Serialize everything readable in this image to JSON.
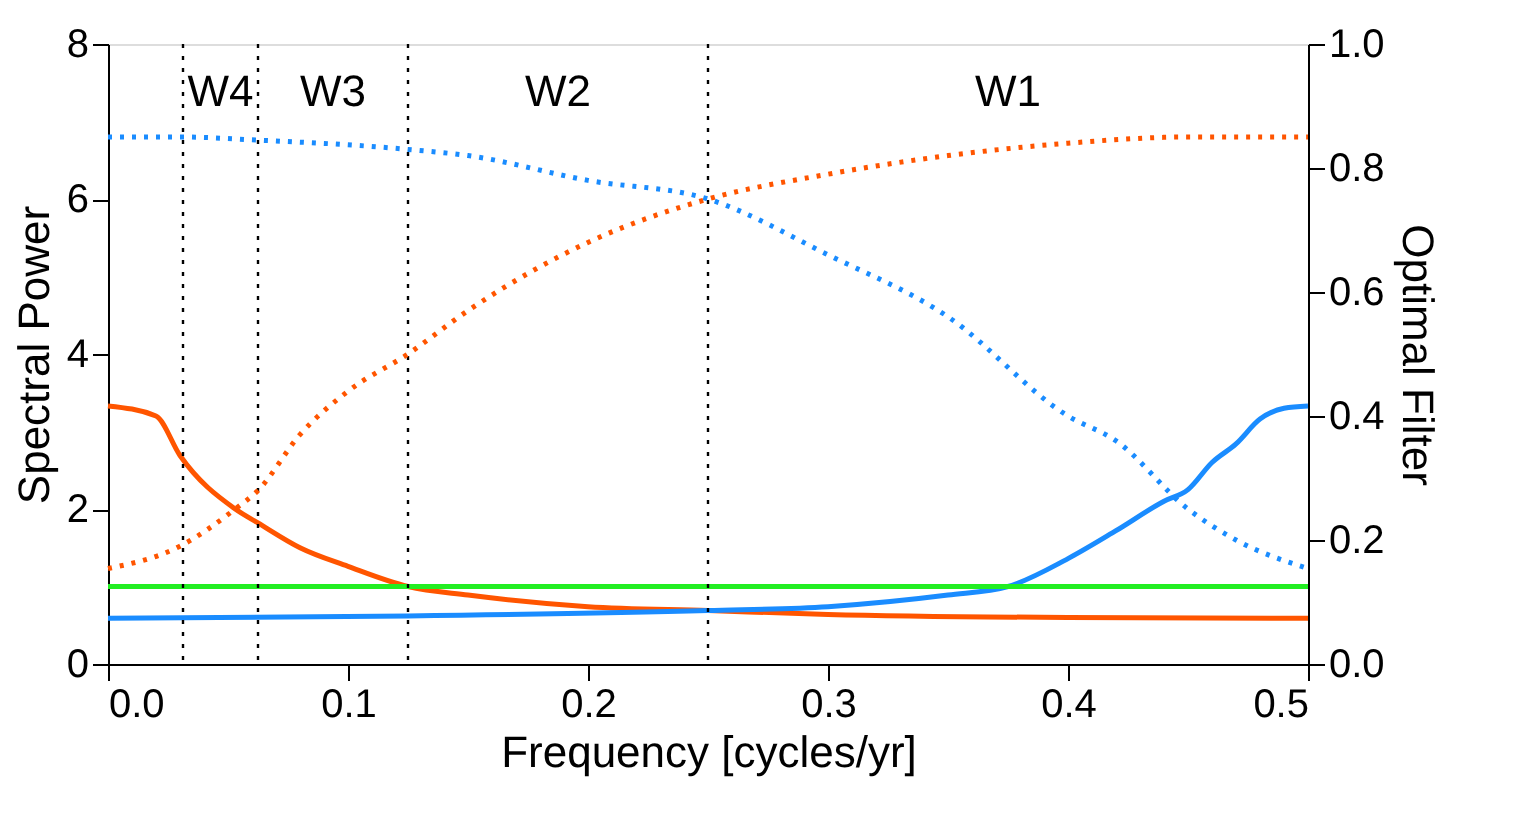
{
  "chart_data": {
    "type": "line",
    "xlabel": "Frequency [cycles/yr]",
    "ylabel": "Spectral Power",
    "y2label": "Optimal Filter",
    "xlim": [
      0,
      0.5
    ],
    "xticks": [
      {
        "value": 0,
        "label": "0.0"
      },
      0.1,
      0.2,
      0.3,
      0.4,
      0.5
    ],
    "ylim": [
      0,
      8
    ],
    "yticks": [
      0,
      2,
      4,
      6,
      8
    ],
    "y2lim": [
      0,
      1
    ],
    "y2ticks": [
      {
        "value": 0,
        "label": "0.0"
      },
      0.2,
      0.4,
      0.6,
      0.8,
      {
        "value": 1,
        "label": "1.0"
      }
    ],
    "grid": false,
    "line_style": "solid",
    "series": [
      {
        "color": "#ff5500",
        "x": [
          0,
          0.02,
          0.03,
          0.053,
          0.0625,
          0.08,
          0.1,
          0.125,
          0.15,
          0.2,
          0.25,
          0.3,
          0.4,
          0.5
        ],
        "values": [
          3.33,
          3.2,
          2.69,
          2.0,
          1.82,
          1.5,
          1.26,
          1.0,
          0.89,
          0.74,
          0.69,
          0.64,
          0.6,
          0.59
        ]
      },
      {
        "color": "#1a8cff",
        "x": [
          0,
          0.125,
          0.25,
          0.3,
          0.35,
          0.375,
          0.4,
          0.42,
          0.44,
          0.45,
          0.46,
          0.47,
          0.48,
          0.49,
          0.5
        ],
        "values": [
          0.59,
          0.62,
          0.69,
          0.74,
          0.89,
          1.0,
          1.36,
          1.72,
          2.1,
          2.25,
          2.6,
          2.84,
          3.16,
          3.3,
          3.33
        ]
      },
      {
        "color": "#22ee22",
        "x": [
          0,
          0.5
        ],
        "values": [
          1.0,
          1.0
        ]
      },
      {
        "color": "#1a8cff",
        "axis": "y2",
        "line_style": "dotted",
        "x": [
          0,
          0.03,
          0.0625,
          0.125,
          0.15,
          0.2,
          0.25,
          0.3,
          0.35,
          0.4,
          0.42,
          0.45,
          0.47,
          0.5
        ],
        "values": [
          0.85,
          0.85,
          0.845,
          0.83,
          0.82,
          0.78,
          0.75,
          0.66,
          0.56,
          0.4,
          0.36,
          0.25,
          0.2,
          0.154
        ]
      },
      {
        "color": "#ff5500",
        "axis": "y2",
        "line_style": "dotted",
        "x": [
          0,
          0.03,
          0.053,
          0.0625,
          0.08,
          0.1,
          0.125,
          0.15,
          0.2,
          0.25,
          0.3,
          0.35,
          0.4,
          0.45,
          0.5
        ],
        "values": [
          0.154,
          0.19,
          0.25,
          0.28,
          0.37,
          0.44,
          0.5,
          0.57,
          0.68,
          0.75,
          0.79,
          0.82,
          0.84,
          0.85,
          0.85
        ]
      }
    ],
    "ref_lines": [
      {
        "axis": "x",
        "value": 0.03125,
        "color": "#000000",
        "line_style": "dotted"
      },
      {
        "axis": "x",
        "value": 0.0625,
        "color": "#000000",
        "line_style": "dotted"
      },
      {
        "axis": "x",
        "value": 0.125,
        "color": "#000000",
        "line_style": "dotted"
      },
      {
        "axis": "x",
        "value": 0.25,
        "color": "#000000",
        "line_style": "dotted"
      }
    ],
    "annotations": [
      "W4",
      "W3",
      "W2",
      "W1"
    ]
  }
}
